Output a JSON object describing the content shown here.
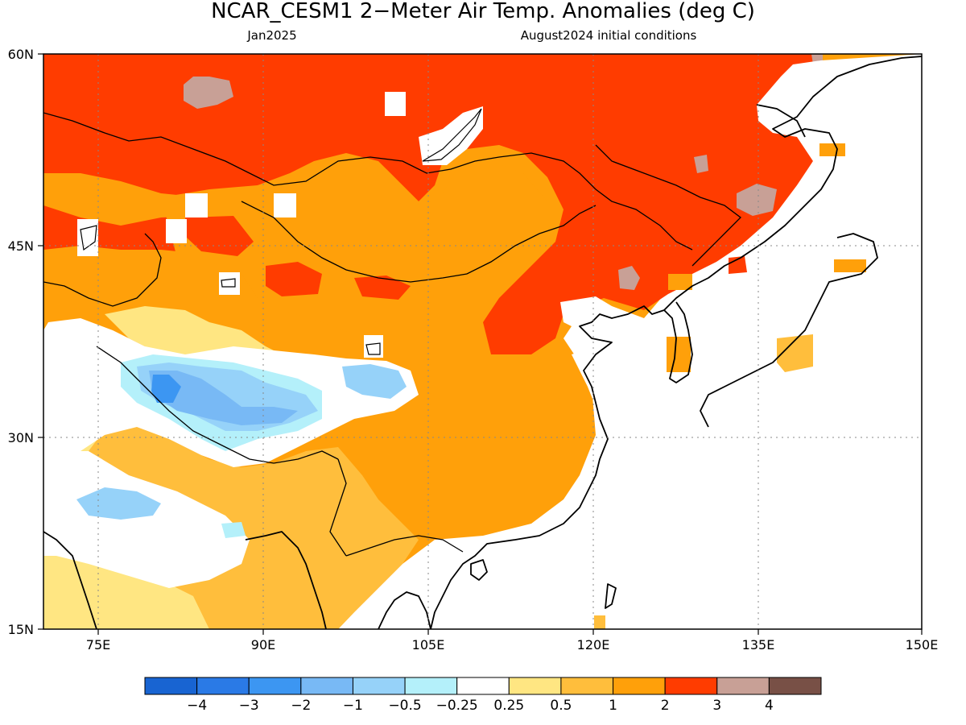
{
  "title": "NCAR_CESM1 2−Meter Air Temp. Anomalies (deg C)",
  "subtitle_left": "Jan2025",
  "subtitle_right": "August2024 initial conditions",
  "map": {
    "lon_range": [
      70,
      150
    ],
    "lat_range": [
      15,
      60
    ],
    "lon_ticks": [
      "75E",
      "90E",
      "105E",
      "120E",
      "135E",
      "150E"
    ],
    "lat_ticks": [
      "60N",
      "45N",
      "30N",
      "15N"
    ],
    "grid": true
  },
  "colorbar": {
    "colors": [
      "#1864d2",
      "#2a7ae6",
      "#3c96f2",
      "#78b9f5",
      "#96d2f9",
      "#b4f0fa",
      "#ffffff",
      "#ffe682",
      "#ffbe3c",
      "#ffa00a",
      "#ff3c00",
      "#c8a096",
      "#785046"
    ],
    "labels": [
      "−4",
      "−3",
      "−2",
      "−1",
      "−0.5",
      "−0.25",
      "0.25",
      "0.5",
      "1",
      "2",
      "3",
      "4"
    ]
  }
}
